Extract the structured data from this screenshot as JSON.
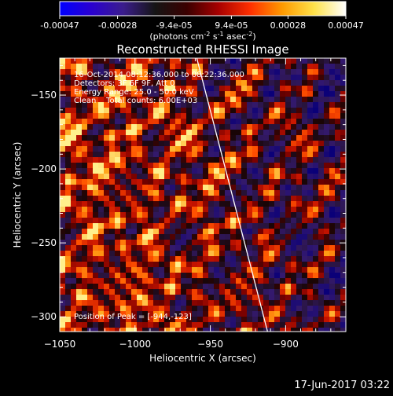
{
  "colorbar": {
    "ticks": [
      "-0.00047",
      "-0.00028",
      "-9.4e-05",
      "9.4e-05",
      "0.00028",
      "0.00047"
    ],
    "unit_parts": [
      "(photons cm",
      "-2",
      " s",
      "-1",
      " asec",
      "-2",
      ")"
    ],
    "colormap": [
      "#0000ff",
      "#2a00d0",
      "#3b1d8c",
      "#151515",
      "#3a0000",
      "#a80000",
      "#ff3000",
      "#ff9a00",
      "#ffe24a",
      "#ffffff"
    ]
  },
  "chart_data": {
    "type": "heatmap",
    "title": "Reconstructed RHESSI Image",
    "xlabel": "Heliocentric X (arcsec)",
    "ylabel": "Heliocentric Y (arcsec)",
    "xlim": [
      -1050,
      -860
    ],
    "ylim": [
      -310,
      -125
    ],
    "xticks": [
      -1050,
      -1000,
      -950,
      -900
    ],
    "yticks": [
      -150,
      -200,
      -250,
      -300
    ],
    "xtick_labels": [
      "−1050",
      "−1000",
      "−950",
      "−900"
    ],
    "ytick_labels": [
      "−150",
      "−200",
      "−250",
      "−300"
    ],
    "limb_line": [
      [
        -959,
        -125
      ],
      [
        -912,
        -310
      ]
    ],
    "annotations": [
      "16-Oct-2014 08:12:36.000 to 08:22:36.000",
      "Detectors: 3F 6F 9F, Att 0",
      "Energy Range: 25.0 - 50.0 keV",
      "Clean    Total counts: 6.00E+03"
    ],
    "peak_label": "Position of Peak = [-944,-123]",
    "colorbar_range": [
      -0.00047,
      0.00047
    ]
  },
  "footer": {
    "timestamp": "17-Jun-2017 03:22"
  }
}
